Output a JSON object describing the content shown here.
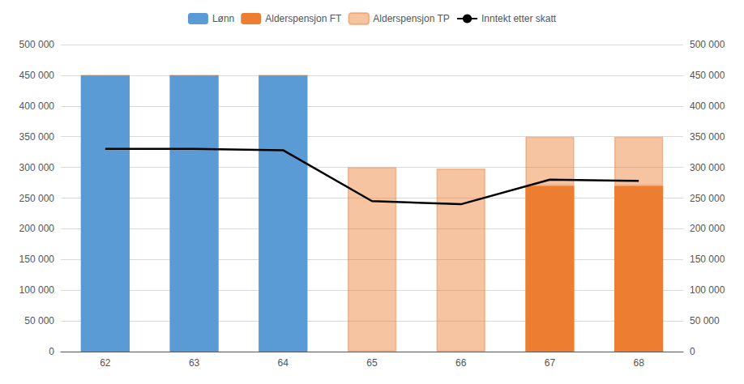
{
  "chart_data": {
    "type": "bar",
    "categories": [
      62,
      63,
      64,
      65,
      66,
      67,
      68
    ],
    "stacked": true,
    "grid": true,
    "legend": "top",
    "series": [
      {
        "name": "Lønn",
        "type": "bar",
        "color": "#5B9BD5",
        "values": [
          450000,
          450000,
          450000,
          0,
          0,
          0,
          0
        ]
      },
      {
        "name": "Alderspensjon FT",
        "type": "bar",
        "color": "#ED7D31",
        "values": [
          0,
          0,
          0,
          0,
          0,
          270000,
          270000
        ]
      },
      {
        "name": "Alderspensjon TP",
        "type": "bar",
        "color": "#ED7D31",
        "values": [
          0,
          0,
          0,
          300000,
          298000,
          80000,
          80000
        ]
      },
      {
        "name": "Inntekt etter skatt",
        "type": "line",
        "color": "#000000",
        "values": [
          330000,
          330000,
          328000,
          245000,
          240000,
          280000,
          278000
        ]
      }
    ],
    "ylim": [
      0,
      500000
    ],
    "yticks": [
      0,
      {
        "value": 50000,
        "label": "50 000"
      },
      {
        "value": 100000,
        "label": "100 000"
      },
      {
        "value": 150000,
        "label": "150 000"
      },
      {
        "value": 200000,
        "label": "200 000"
      },
      {
        "value": 250000,
        "label": "250 000"
      },
      {
        "value": 300000,
        "label": "300 000"
      },
      {
        "value": 350000,
        "label": "350 000"
      },
      {
        "value": 400000,
        "label": "400 000"
      },
      {
        "value": 450000,
        "label": "450 000"
      },
      {
        "value": 500000,
        "label": "500 000"
      }
    ],
    "y2lim": [
      0,
      500000
    ],
    "y2ticks": [
      0,
      {
        "value": 50000,
        "label": "50 000"
      },
      {
        "value": 100000,
        "label": "100 000"
      },
      {
        "value": 150000,
        "label": "150 000"
      },
      {
        "value": 200000,
        "label": "200 000"
      },
      {
        "value": 250000,
        "label": "250 000"
      },
      {
        "value": 300000,
        "label": "300 000"
      },
      {
        "value": 350000,
        "label": "350 000"
      },
      {
        "value": 400000,
        "label": "400 000"
      },
      {
        "value": 450000,
        "label": "450 000"
      },
      {
        "value": 500000,
        "label": "500 000"
      }
    ]
  }
}
